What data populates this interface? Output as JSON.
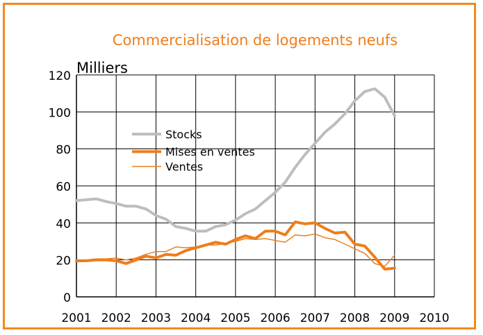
{
  "chart_data": {
    "type": "line",
    "title": "Commercialisation de logements neufs",
    "ylabel": "Milliers",
    "xlabel": "",
    "ylim": [
      0,
      120
    ],
    "xlim": [
      2001,
      2010
    ],
    "yticks": [
      0,
      20,
      40,
      60,
      80,
      100,
      120
    ],
    "xticks": [
      "2001",
      "2002",
      "2003",
      "2004",
      "2005",
      "2006",
      "2007",
      "2008",
      "2009",
      "2010"
    ],
    "grid": true,
    "legend_position": "upper-left",
    "series": [
      {
        "name": "Stocks",
        "color": "#bdbdbd",
        "x": [
          2001.0,
          2001.25,
          2001.5,
          2001.75,
          2002.0,
          2002.25,
          2002.5,
          2002.75,
          2003.0,
          2003.25,
          2003.5,
          2003.75,
          2004.0,
          2004.25,
          2004.5,
          2004.75,
          2005.0,
          2005.25,
          2005.5,
          2005.75,
          2006.0,
          2006.25,
          2006.5,
          2006.75,
          2007.0,
          2007.25,
          2007.5,
          2007.75,
          2008.0,
          2008.25,
          2008.5,
          2008.75,
          2009.0
        ],
        "values": [
          52,
          52.5,
          53,
          51.5,
          50.5,
          49,
          49,
          47.5,
          44,
          42,
          38,
          37,
          35.5,
          35.5,
          38,
          39,
          41.5,
          45,
          47.5,
          52,
          56.5,
          62,
          70,
          77,
          83,
          89,
          93.5,
          99,
          106,
          111,
          112.5,
          108,
          98
        ]
      },
      {
        "name": "Mises en ventes",
        "color": "#ee7d1a",
        "x": [
          2001.0,
          2001.25,
          2001.5,
          2001.75,
          2002.0,
          2002.25,
          2002.5,
          2002.75,
          2003.0,
          2003.25,
          2003.5,
          2003.75,
          2004.0,
          2004.25,
          2004.5,
          2004.75,
          2005.0,
          2005.25,
          2005.5,
          2005.75,
          2006.0,
          2006.25,
          2006.5,
          2006.75,
          2007.0,
          2007.25,
          2007.5,
          2007.75,
          2008.0,
          2008.25,
          2008.5,
          2008.75,
          2009.0
        ],
        "values": [
          19.5,
          19.5,
          20,
          20,
          19.5,
          18,
          20,
          22,
          21,
          23,
          22.5,
          25,
          26.5,
          28,
          29.5,
          28.5,
          31,
          33,
          31.5,
          35.5,
          35.5,
          33.5,
          40.5,
          39.5,
          40,
          37,
          34.5,
          35,
          28.5,
          27.5,
          21.5,
          15,
          15.5
        ]
      },
      {
        "name": "Ventes",
        "color": "#ee7d1a",
        "x": [
          2001.0,
          2001.25,
          2001.5,
          2001.75,
          2002.0,
          2002.25,
          2002.5,
          2002.75,
          2003.0,
          2003.25,
          2003.5,
          2003.75,
          2004.0,
          2004.25,
          2004.5,
          2004.75,
          2005.0,
          2005.25,
          2005.5,
          2005.75,
          2006.0,
          2006.25,
          2006.5,
          2006.75,
          2007.0,
          2007.25,
          2007.5,
          2007.75,
          2008.0,
          2008.25,
          2008.5,
          2008.75,
          2009.0
        ],
        "values": [
          20,
          20,
          20.5,
          20.5,
          21,
          20,
          21,
          23,
          24.5,
          24.5,
          27,
          26.5,
          27,
          28,
          28,
          29,
          30,
          31.5,
          31,
          31.5,
          30.5,
          29.5,
          33.5,
          33,
          34,
          32,
          31,
          28.5,
          26,
          23.5,
          18,
          16.5,
          22.5
        ]
      }
    ]
  }
}
